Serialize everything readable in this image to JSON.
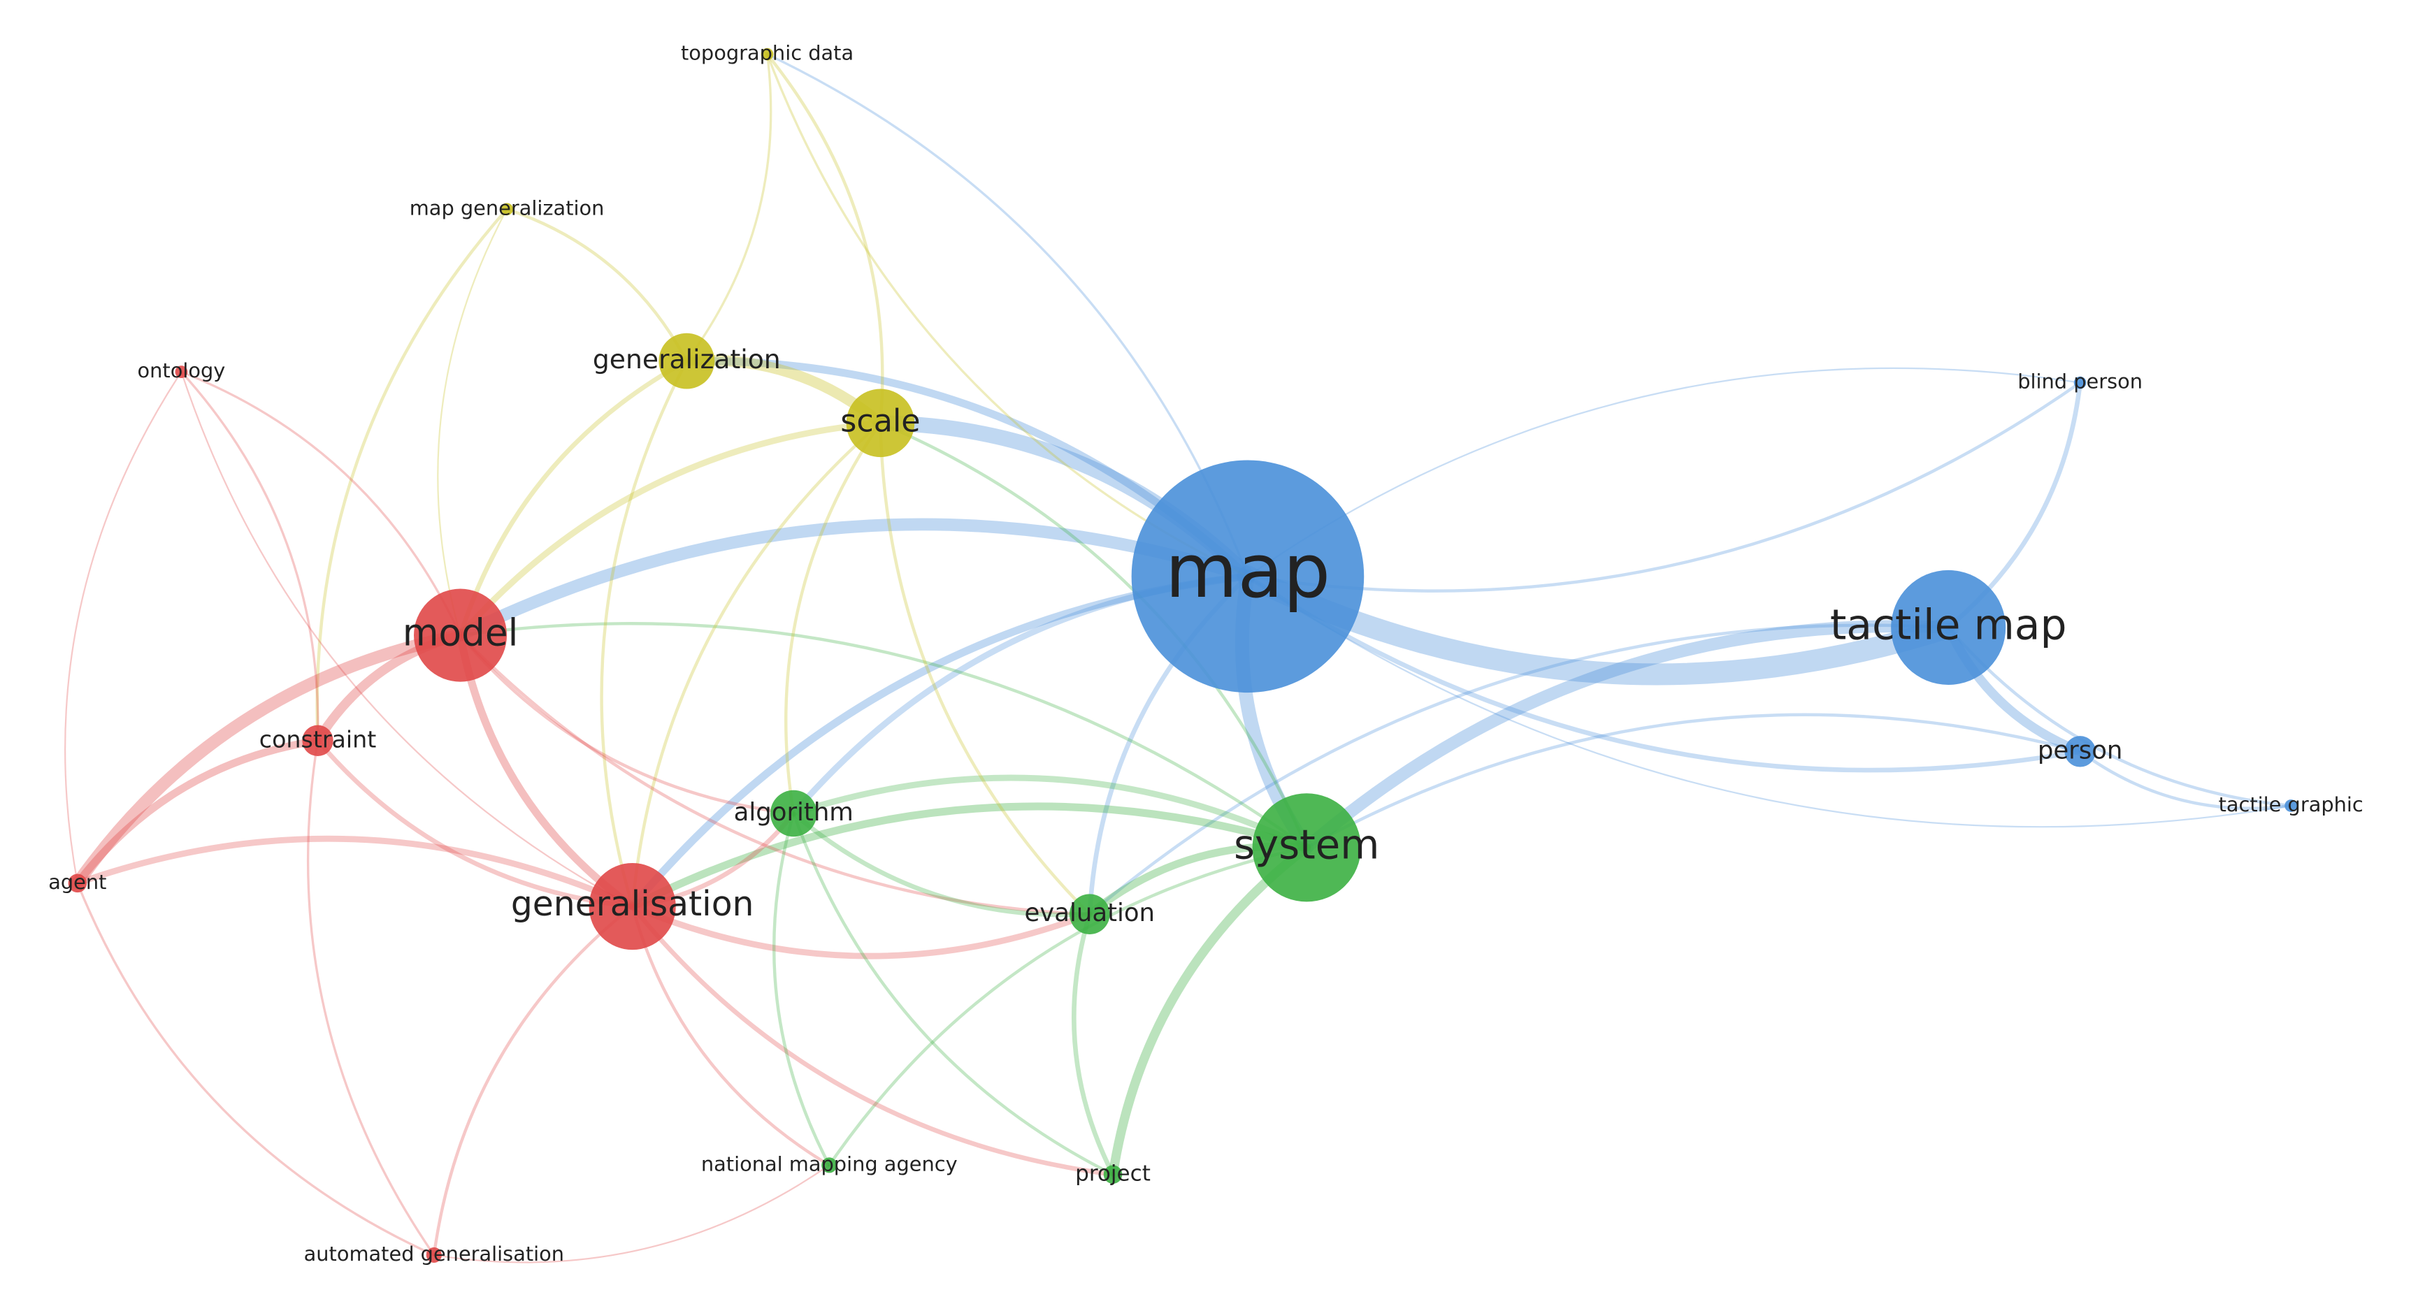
{
  "nodes": [
    {
      "label": "topographic data"
    },
    {
      "label": "map generalization"
    },
    {
      "label": "generalization"
    },
    {
      "label": "scale"
    },
    {
      "label": "ontology"
    },
    {
      "label": "model"
    },
    {
      "label": "constraint"
    },
    {
      "label": "agent"
    },
    {
      "label": "generalisation"
    },
    {
      "label": "automated generalisation"
    },
    {
      "label": "algorithm"
    },
    {
      "label": "evaluation"
    },
    {
      "label": "system"
    },
    {
      "label": "national mapping agency"
    },
    {
      "label": "project"
    },
    {
      "label": "map"
    },
    {
      "label": "tactile map"
    },
    {
      "label": "blind person"
    },
    {
      "label": "person"
    },
    {
      "label": "tactile graphic"
    }
  ]
}
